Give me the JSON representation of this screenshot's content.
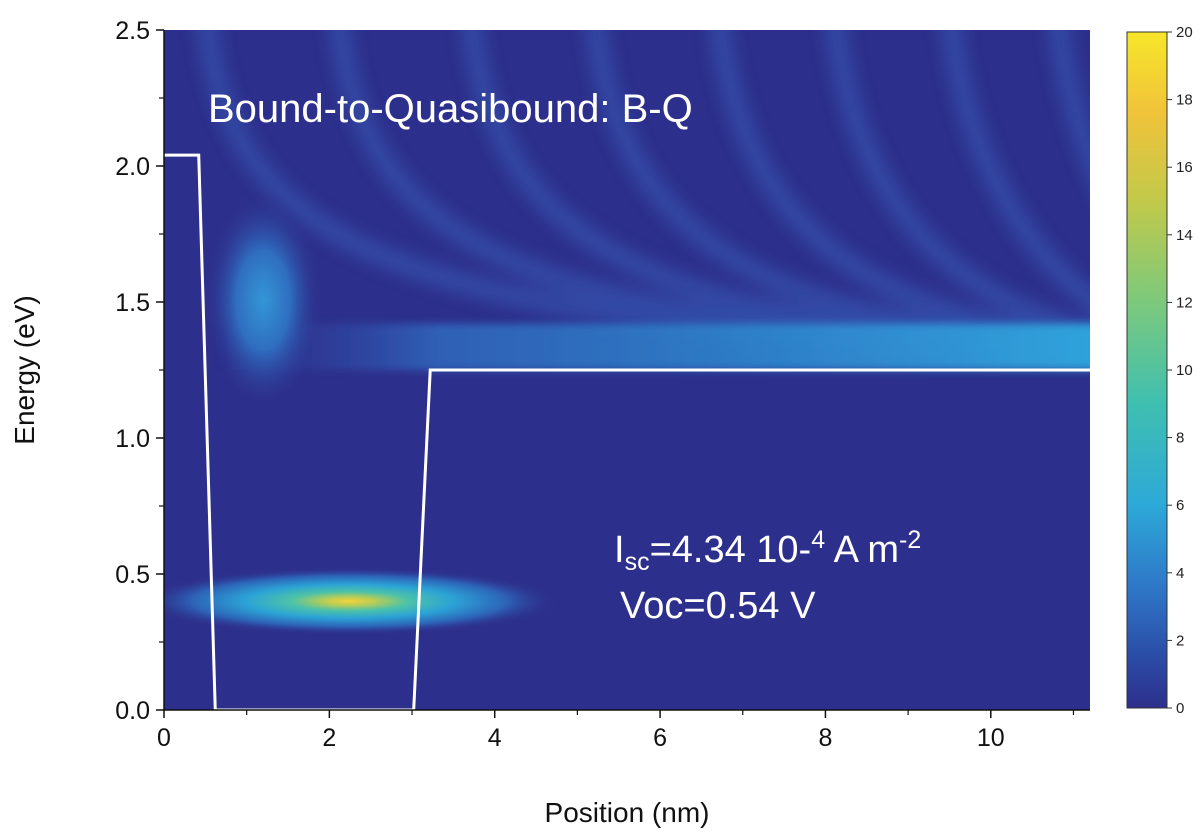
{
  "chart_data": {
    "type": "heatmap",
    "title": "",
    "xlabel": "Position (nm)",
    "ylabel": "Energy (eV)",
    "xlim": [
      0,
      11.2
    ],
    "ylim": [
      0,
      2.5
    ],
    "x_ticks": [
      "0",
      "2",
      "4",
      "6",
      "8",
      "10"
    ],
    "y_ticks": [
      "0.0",
      "0.5",
      "1.0",
      "1.5",
      "2.0",
      "2.5"
    ],
    "colorbar": {
      "range": [
        0,
        20
      ],
      "ticks": [
        "0",
        "2",
        "4",
        "6",
        "8",
        "10",
        "12",
        "14",
        "16",
        "18",
        "20"
      ],
      "colormap": [
        "#2d2f8c",
        "#2b4ea8",
        "#2f78c8",
        "#2da9d8",
        "#3fbfb0",
        "#7cc97c",
        "#c2c94a",
        "#f0c33a",
        "#f6e62a"
      ]
    },
    "potential_profile": {
      "color": "#ffffff",
      "x": [
        0,
        0.42,
        0.62,
        3.02,
        3.22,
        11.2
      ],
      "y": [
        2.04,
        2.04,
        0.0,
        0.0,
        1.25,
        1.25
      ]
    },
    "peaks": [
      {
        "x": 2.0,
        "y": 0.4,
        "value": 17
      },
      {
        "x": 1.2,
        "y": 1.4,
        "value": 3
      }
    ],
    "annotations": {
      "mechanism": "Bound-to-Quasibound: B-Q",
      "isc_prefix": "I",
      "isc_subscript": "sc",
      "isc_value": "=4.34 10-",
      "isc_exp": "4",
      "isc_unit": " A m",
      "isc_unit_exp": "-2",
      "voc": "Voc=0.54 V"
    }
  }
}
